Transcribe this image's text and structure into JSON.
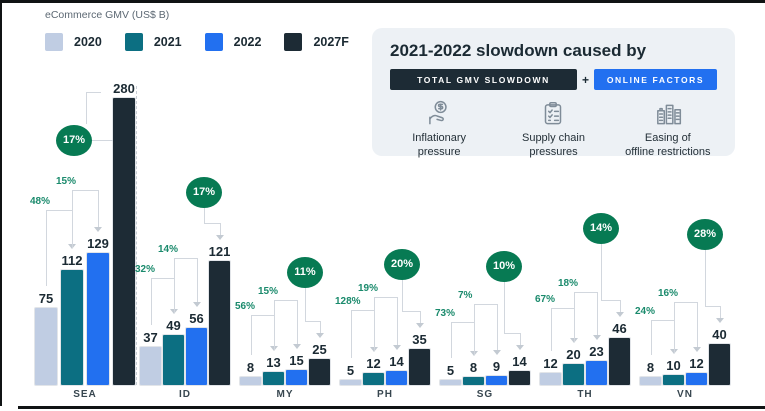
{
  "title": "eCommerce GMV (US$ B)",
  "legend": [
    {
      "label": "2020",
      "color": "#c0cde3"
    },
    {
      "label": "2021",
      "color": "#0c6f82"
    },
    {
      "label": "2022",
      "color": "#2270f0"
    },
    {
      "label": "2027F",
      "color": "#1d2b35"
    }
  ],
  "info_panel": {
    "heading": "2021-2022 slowdown caused by",
    "badge_dark": "TOTAL GMV SLOWDOWN",
    "plus": "+",
    "badge_blue": "ONLINE FACTORS",
    "factors": [
      {
        "icon": "hand-coin-icon",
        "label": "Inflationary\npressure"
      },
      {
        "icon": "checklist-icon",
        "label": "Supply chain\npressures"
      },
      {
        "icon": "buildings-icon",
        "label": "Easing of\noffline restrictions"
      }
    ]
  },
  "chart_data": {
    "type": "bar",
    "title": "eCommerce GMV (US$ B)",
    "unit": "US$ B",
    "series_names": [
      "2020",
      "2021",
      "2022",
      "2027F"
    ],
    "series_colors": [
      "#c0cde3",
      "#0c6f82",
      "#2270f0",
      "#1d2b35"
    ],
    "accent_green": "#077a53",
    "growth_label_color": "#1a8a6c",
    "groups": [
      {
        "label": "SEA",
        "values": [
          75,
          112,
          129,
          280
        ],
        "growth": [
          "48%",
          "15%"
        ],
        "cagr": "17%"
      },
      {
        "label": "ID",
        "values": [
          37,
          49,
          56,
          121
        ],
        "growth": [
          "32%",
          "14%"
        ],
        "cagr": "17%"
      },
      {
        "label": "MY",
        "values": [
          8,
          13,
          15,
          25
        ],
        "growth": [
          "56%",
          "15%"
        ],
        "cagr": "11%"
      },
      {
        "label": "PH",
        "values": [
          5,
          12,
          14,
          35
        ],
        "growth": [
          "128%",
          "19%"
        ],
        "cagr": "20%"
      },
      {
        "label": "SG",
        "values": [
          5,
          8,
          9,
          14
        ],
        "growth": [
          "73%",
          "7%"
        ],
        "cagr": "10%"
      },
      {
        "label": "TH",
        "values": [
          12,
          20,
          23,
          46
        ],
        "growth": [
          "67%",
          "18%"
        ],
        "cagr": "14%"
      },
      {
        "label": "VN",
        "values": [
          8,
          10,
          12,
          40
        ],
        "growth": [
          "24%",
          "16%"
        ],
        "cagr": "28%"
      }
    ]
  }
}
